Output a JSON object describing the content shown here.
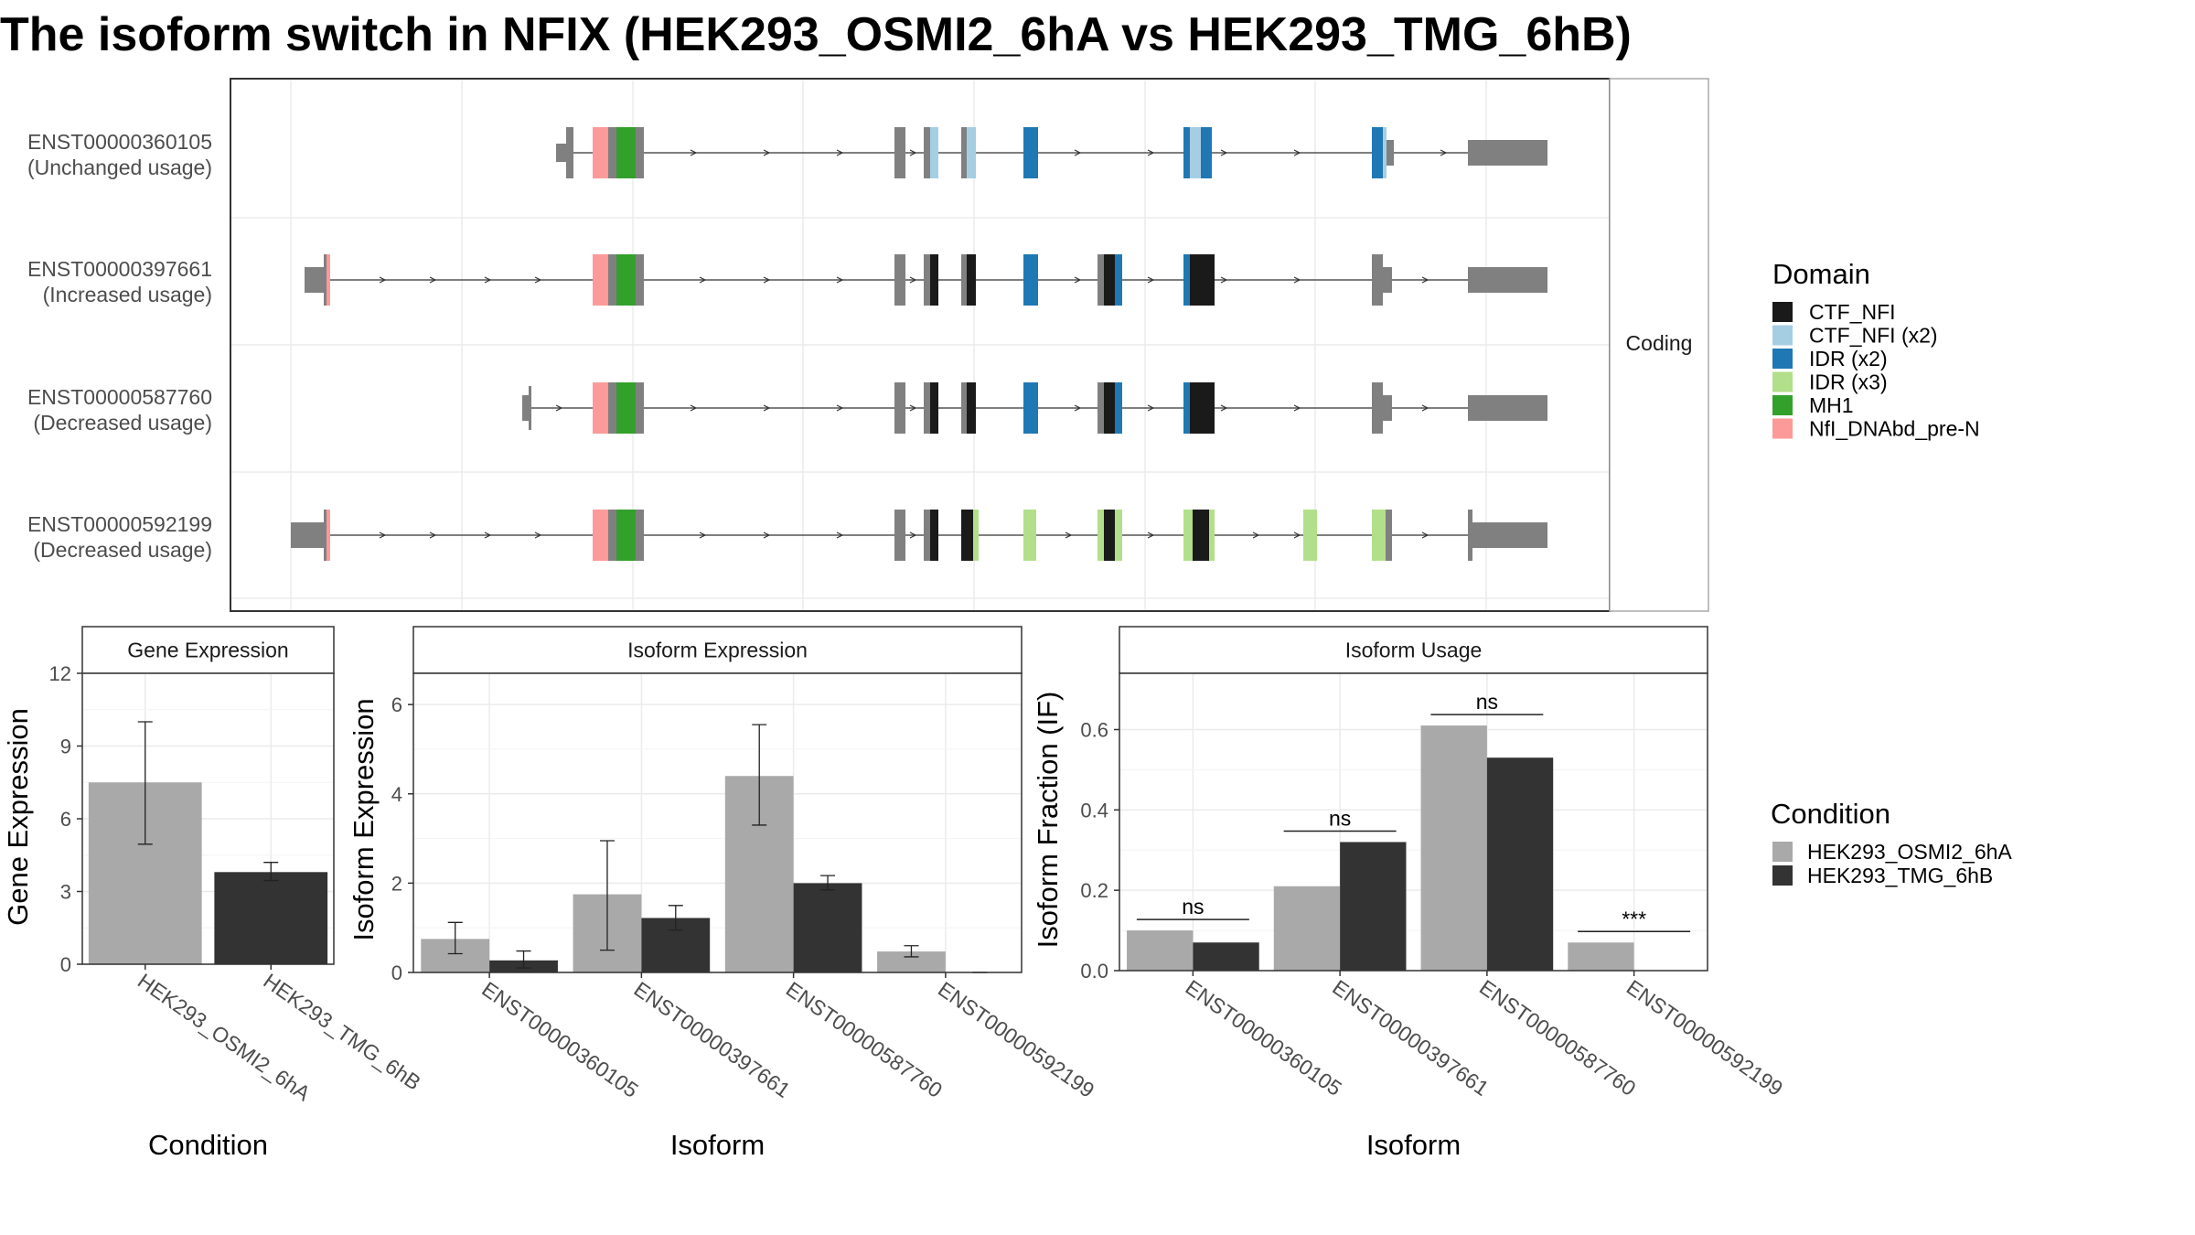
{
  "title": "The isoform switch in NFIX (HEK293_OSMI2_6hA vs HEK293_TMG_6hB)",
  "structure": {
    "strip_label": "Coding",
    "isoforms": [
      {
        "id": "ENST00000360105",
        "status": "(Unchanged usage)"
      },
      {
        "id": "ENST00000397661",
        "status": "(Increased usage)"
      },
      {
        "id": "ENST00000587760",
        "status": "(Decreased usage)"
      },
      {
        "id": "ENST00000592199",
        "status": "(Decreased usage)"
      }
    ]
  },
  "domain_legend": {
    "title": "Domain",
    "items": [
      {
        "label": "CTF_NFI",
        "color": "#1a1a1a"
      },
      {
        "label": "CTF_NFI (x2)",
        "color": "#a6cee3"
      },
      {
        "label": "IDR (x2)",
        "color": "#1f78b4"
      },
      {
        "label": "IDR (x3)",
        "color": "#b2df8a"
      },
      {
        "label": "MH1",
        "color": "#33a02c"
      },
      {
        "label": "NfI_DNAbd_pre-N",
        "color": "#fb9a99"
      }
    ]
  },
  "condition_legend": {
    "title": "Condition",
    "items": [
      {
        "label": "HEK293_OSMI2_6hA",
        "color": "#a9a9a9"
      },
      {
        "label": "HEK293_TMG_6hB",
        "color": "#333333"
      }
    ]
  },
  "chart_data": [
    {
      "type": "bar",
      "title": "Gene Expression",
      "xlabel": "Condition",
      "ylabel": "Gene Expression",
      "ylim": [
        0,
        12
      ],
      "yticks": [
        0,
        3,
        6,
        9,
        12
      ],
      "categories": [
        "HEK293_OSMI2_6hA",
        "HEK293_TMG_6hB"
      ],
      "values": [
        7.5,
        3.8
      ],
      "error_low": [
        4.95,
        3.45
      ],
      "error_high": [
        10.0,
        4.2
      ]
    },
    {
      "type": "bar",
      "title": "Isoform Expression",
      "xlabel": "Isoform",
      "ylabel": "Isoform Expression",
      "ylim": [
        0,
        6.7
      ],
      "yticks": [
        0,
        2,
        4,
        6
      ],
      "categories": [
        "ENST00000360105",
        "ENST00000397661",
        "ENST00000587760",
        "ENST00000592199"
      ],
      "series": [
        {
          "name": "HEK293_OSMI2_6hA",
          "values": [
            0.75,
            1.75,
            4.4,
            0.47
          ],
          "error_low": [
            0.42,
            0.5,
            3.3,
            0.35
          ],
          "error_high": [
            1.12,
            2.95,
            5.55,
            0.6
          ]
        },
        {
          "name": "HEK293_TMG_6hB",
          "values": [
            0.27,
            1.22,
            2.0,
            0.0
          ],
          "error_low": [
            0.1,
            0.95,
            1.85,
            0.0
          ],
          "error_high": [
            0.48,
            1.5,
            2.17,
            0.0
          ]
        }
      ]
    },
    {
      "type": "bar",
      "title": "Isoform Usage",
      "xlabel": "Isoform",
      "ylabel": "Isoform Fraction (IF)",
      "ylim": [
        0,
        0.74
      ],
      "yticks": [
        0.0,
        0.2,
        0.4,
        0.6
      ],
      "ytick_labels": [
        "0.0",
        "0.2",
        "0.4",
        "0.6"
      ],
      "categories": [
        "ENST00000360105",
        "ENST00000397661",
        "ENST00000587760",
        "ENST00000592199"
      ],
      "series": [
        {
          "name": "HEK293_OSMI2_6hA",
          "values": [
            0.1,
            0.21,
            0.61,
            0.07
          ]
        },
        {
          "name": "HEK293_TMG_6hB",
          "values": [
            0.07,
            0.32,
            0.53,
            0.0
          ]
        }
      ],
      "significance": [
        "ns",
        "ns",
        "ns",
        "***"
      ]
    }
  ]
}
